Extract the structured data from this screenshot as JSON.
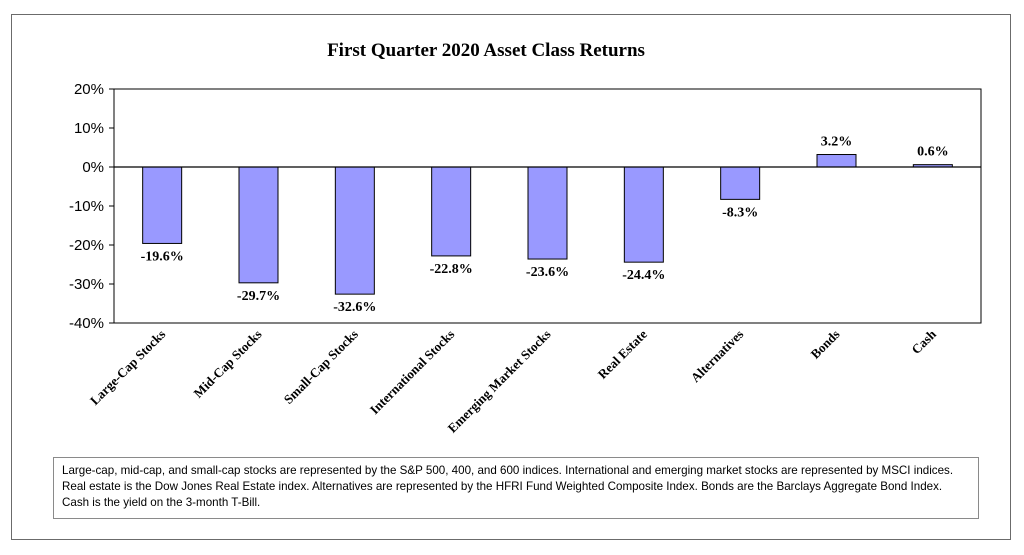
{
  "chart_data": {
    "type": "bar",
    "title": "First Quarter 2020 Asset Class Returns",
    "categories": [
      "Large-Cap Stocks",
      "Mid-Cap Stocks",
      "Small-Cap Stocks",
      "International Stocks",
      "Emerging Market Stocks",
      "Real Estate",
      "Alternatives",
      "Bonds",
      "Cash"
    ],
    "values": [
      -19.6,
      -29.7,
      -32.6,
      -22.8,
      -23.6,
      -24.4,
      -8.3,
      3.2,
      0.6
    ],
    "data_labels": [
      "-19.6%",
      "-29.7%",
      "-32.6%",
      "-22.8%",
      "-23.6%",
      "-24.4%",
      "-8.3%",
      "3.2%",
      "0.6%"
    ],
    "ylim": [
      -40,
      20
    ],
    "y_ticks": [
      20,
      10,
      0,
      -10,
      -20,
      -30,
      -40
    ],
    "y_tick_labels": [
      "20%",
      "10%",
      "0%",
      "-10%",
      "-20%",
      "-30%",
      "-40%"
    ],
    "xlabel": "",
    "ylabel": "",
    "grid": false,
    "colors": {
      "bar_fill": "#9999ff",
      "bar_stroke": "#000000",
      "axis": "#000000"
    }
  },
  "footnote": "Large-cap, mid-cap, and small-cap stocks are represented by the S&P 500, 400, and 600 indices.  International and emerging market stocks are represented by MSCI indices.  Real estate is the Dow Jones Real Estate index.  Alternatives are represented by the HFRI Fund Weighted Composite Index.  Bonds are the Barclays Aggregate Bond Index.  Cash is the yield on the 3-month T-Bill."
}
